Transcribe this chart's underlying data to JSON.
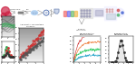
{
  "bg": "#ffffff",
  "workflow": {
    "fungal_colors": [
      "#cc2244",
      "#cc2244",
      "#dd3355",
      "#cc1133"
    ],
    "arrow_color": "#aaaaaa",
    "dna_color": "#888888",
    "ecoli_color": "#aaccee",
    "plasmid_color": "#4466aa",
    "flask_color": "#aabbdd"
  },
  "panel1": {
    "bg": "#e8e8e8",
    "line_colors": [
      "#555555",
      "#666666",
      "#777777",
      "#888888",
      "#33aa55",
      "#000000"
    ],
    "wave_colors": [
      "#33aa55",
      "#cc3333",
      "#000000"
    ],
    "gray_fill": "#cccccc"
  },
  "panel2": {
    "bg": "#e8e8e8",
    "scatter_colors": [
      "#cc3333",
      "#993399"
    ],
    "title_color": "#333333"
  },
  "panel3": {
    "bg": "#ffffff",
    "line_colors": [
      "#33aacc",
      "#33cc66",
      "#ee7733",
      "#cc3333"
    ],
    "title_color": "#333333"
  },
  "panel4": {
    "bg": "#ffffff",
    "curve_color": "#555555",
    "fill_color": "#aaaaaa",
    "title_color": "#333333"
  }
}
